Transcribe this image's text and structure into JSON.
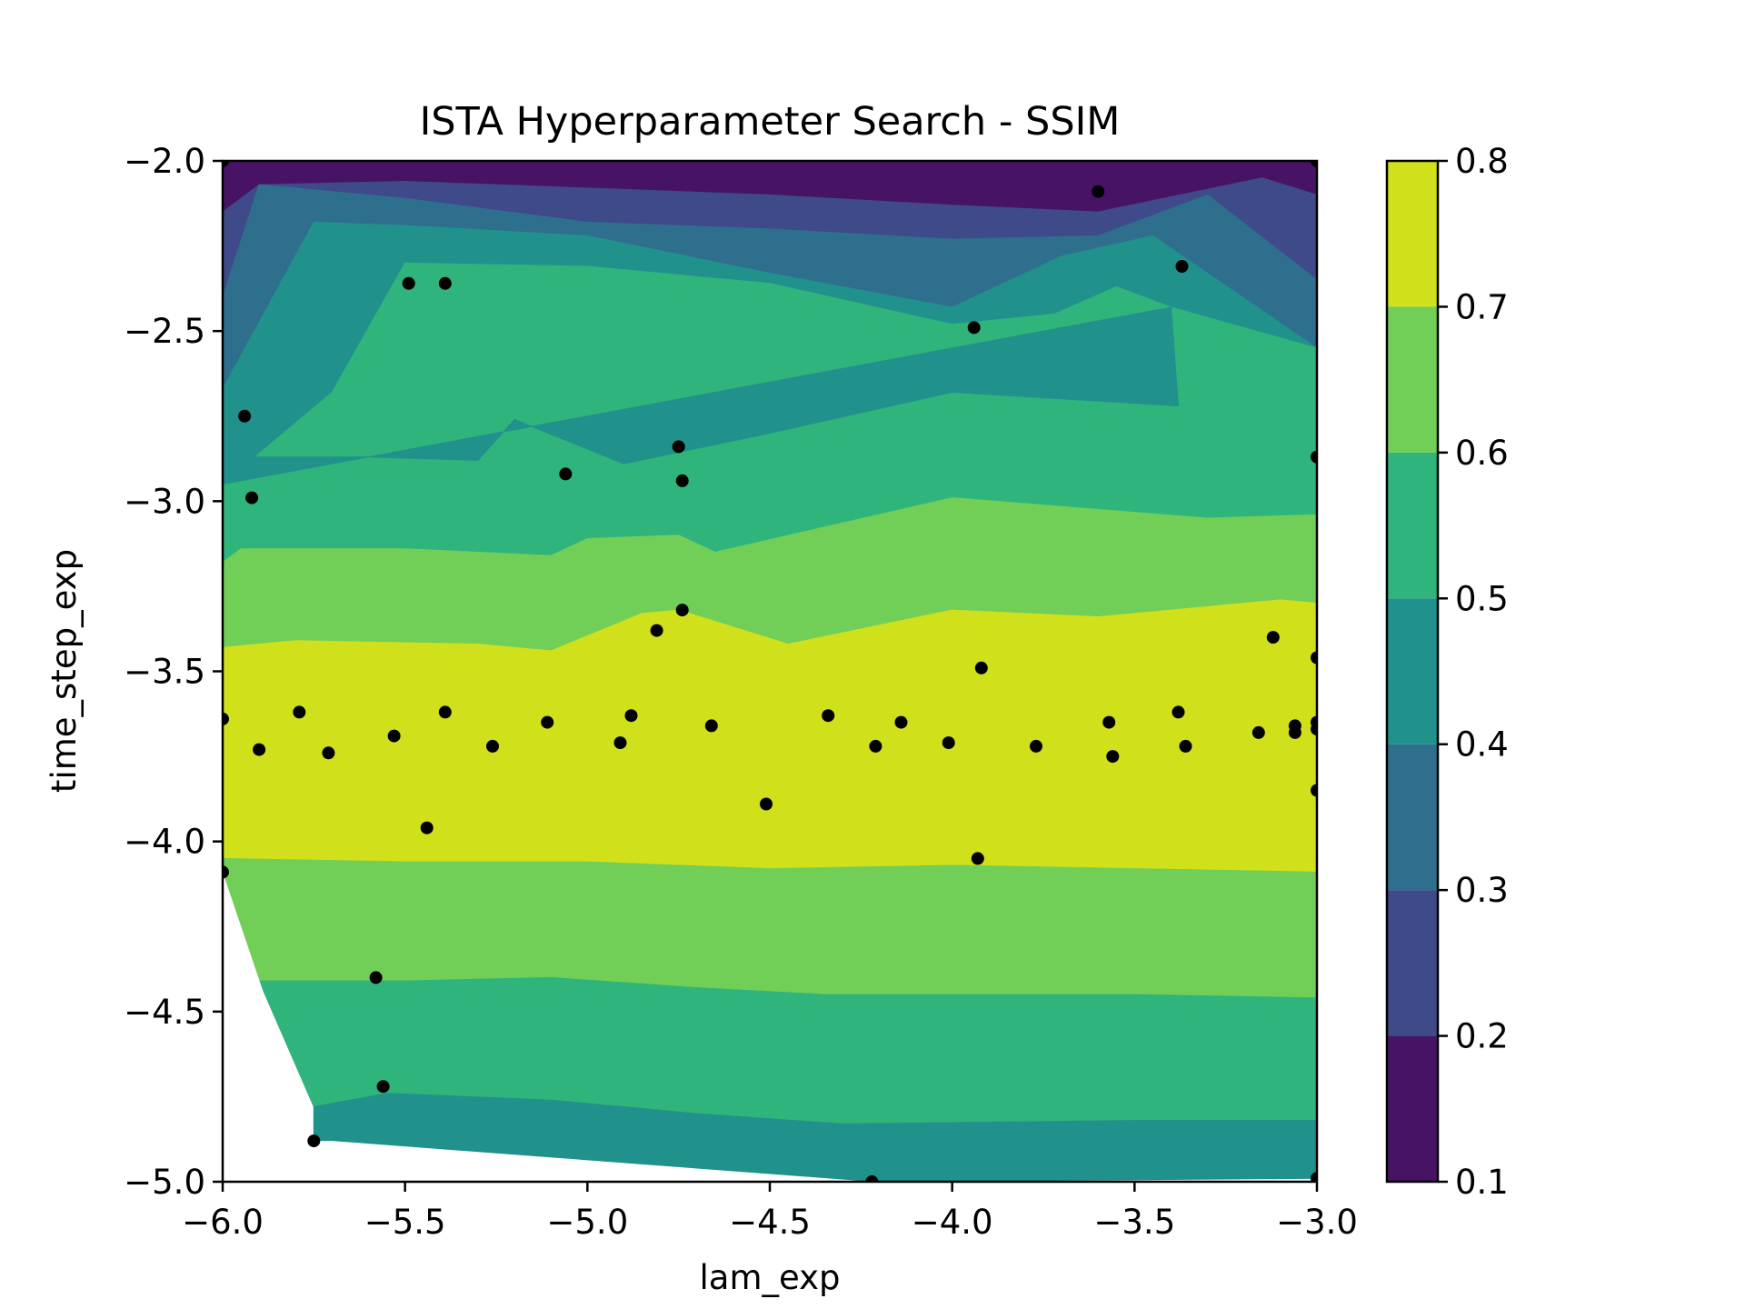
{
  "chart_data": {
    "type": "contour",
    "title": "ISTA Hyperparameter Search - SSIM",
    "xlabel": "lam_exp",
    "ylabel": "time_step_exp",
    "xlim": [
      -6.0,
      -3.0
    ],
    "ylim": [
      -5.0,
      -2.0
    ],
    "x_ticks": [
      -6.0,
      -5.5,
      -5.0,
      -4.5,
      -4.0,
      -3.5,
      -3.0
    ],
    "y_ticks": [
      -5.0,
      -4.5,
      -4.0,
      -3.5,
      -3.0,
      -2.5,
      -2.0
    ],
    "x_tick_labels": [
      "−6.0",
      "−5.5",
      "−5.0",
      "−4.5",
      "−4.0",
      "−3.5",
      "−3.0"
    ],
    "y_tick_labels": [
      "−5.0",
      "−4.5",
      "−4.0",
      "−3.5",
      "−3.0",
      "−2.5",
      "−2.0"
    ],
    "grid": false,
    "colorbar": {
      "levels": [
        0.1,
        0.2,
        0.3,
        0.4,
        0.5,
        0.6,
        0.7,
        0.8
      ],
      "tick_labels": [
        "0.1",
        "0.2",
        "0.3",
        "0.4",
        "0.5",
        "0.6",
        "0.7",
        "0.8"
      ],
      "colors": [
        "#471365",
        "#3e4a89",
        "#2e6f8e",
        "#21918c",
        "#2fb47c",
        "#71cf57",
        "#d0e11c"
      ]
    },
    "band_colors": {
      "0.1-0.2": "#471365",
      "0.2-0.3": "#3e4a89",
      "0.3-0.4": "#2e6f8e",
      "0.4-0.5": "#21918c",
      "0.5-0.6": "#2fb47c",
      "0.6-0.7": "#71cf57",
      "0.7-0.8": "#d0e11c"
    },
    "contour_lines": {
      "0.2": [
        [
          -6.0,
          -2.15
        ],
        [
          -5.9,
          -2.07
        ],
        [
          -5.5,
          -2.06
        ],
        [
          -5.0,
          -2.08
        ],
        [
          -4.5,
          -2.1
        ],
        [
          -4.0,
          -2.13
        ],
        [
          -3.6,
          -2.15
        ],
        [
          -3.15,
          -2.05
        ],
        [
          -3.0,
          -2.1
        ]
      ],
      "0.3": [
        [
          -6.0,
          -2.4
        ],
        [
          -5.9,
          -2.07
        ],
        [
          -5.5,
          -2.11
        ],
        [
          -5.0,
          -2.18
        ],
        [
          -4.5,
          -2.2
        ],
        [
          -4.0,
          -2.23
        ],
        [
          -3.6,
          -2.22
        ],
        [
          -3.3,
          -2.1
        ],
        [
          -3.0,
          -2.35
        ]
      ],
      "0.4": [
        [
          -6.0,
          -2.67
        ],
        [
          -5.75,
          -2.18
        ],
        [
          -5.5,
          -2.19
        ],
        [
          -5.0,
          -2.22
        ],
        [
          -4.5,
          -2.33
        ],
        [
          -4.0,
          -2.43
        ],
        [
          -3.7,
          -2.28
        ],
        [
          -3.45,
          -2.22
        ],
        [
          -3.0,
          -2.55
        ]
      ],
      "0.5": [
        [
          -6.0,
          -2.95
        ],
        [
          -5.7,
          -2.68
        ],
        [
          -5.5,
          -2.3
        ],
        [
          -5.0,
          -2.31
        ],
        [
          -4.5,
          -2.36
        ],
        [
          -4.0,
          -2.48
        ],
        [
          -3.72,
          -2.45
        ],
        [
          -3.55,
          -2.37
        ],
        [
          -3.4,
          -2.43
        ],
        [
          -3.38,
          -2.72
        ],
        [
          -4.0,
          -2.68
        ],
        [
          -4.5,
          -2.8
        ],
        [
          -4.9,
          -2.89
        ],
        [
          -5.2,
          -2.76
        ],
        [
          -5.3,
          -2.88
        ],
        [
          -5.6,
          -2.87
        ],
        [
          -5.95,
          -2.87
        ],
        [
          -6.0,
          -2.95
        ]
      ],
      "0.6": [
        [
          -6.0,
          -3.18
        ],
        [
          -5.95,
          -3.14
        ],
        [
          -5.5,
          -3.14
        ],
        [
          -5.1,
          -3.16
        ],
        [
          -5.0,
          -3.11
        ],
        [
          -4.75,
          -3.1
        ],
        [
          -4.65,
          -3.15
        ],
        [
          -4.0,
          -2.99
        ],
        [
          -3.3,
          -3.05
        ],
        [
          -3.0,
          -3.04
        ]
      ],
      "0.7": [
        [
          -6.0,
          -3.43
        ],
        [
          -5.8,
          -3.41
        ],
        [
          -5.3,
          -3.42
        ],
        [
          -5.1,
          -3.44
        ],
        [
          -4.85,
          -3.33
        ],
        [
          -4.75,
          -3.32
        ],
        [
          -4.45,
          -3.42
        ],
        [
          -4.0,
          -3.32
        ],
        [
          -3.6,
          -3.34
        ],
        [
          -3.1,
          -3.29
        ],
        [
          -3.0,
          -3.3
        ]
      ],
      "0.6b": [
        [
          -6.0,
          -4.05
        ],
        [
          -5.5,
          -4.06
        ],
        [
          -5.0,
          -4.06
        ],
        [
          -4.5,
          -4.08
        ],
        [
          -4.0,
          -4.07
        ],
        [
          -3.5,
          -4.08
        ],
        [
          -3.0,
          -4.09
        ]
      ],
      "0.5b": [
        [
          -5.9,
          -4.41
        ],
        [
          -5.5,
          -4.41
        ],
        [
          -5.1,
          -4.4
        ],
        [
          -4.7,
          -4.43
        ],
        [
          -4.35,
          -4.45
        ],
        [
          -4.0,
          -4.45
        ],
        [
          -3.5,
          -4.45
        ],
        [
          -3.0,
          -4.46
        ]
      ],
      "0.4b": [
        [
          -5.75,
          -4.78
        ],
        [
          -5.55,
          -4.74
        ],
        [
          -5.1,
          -4.76
        ],
        [
          -4.7,
          -4.8
        ],
        [
          -4.3,
          -4.83
        ],
        [
          -3.5,
          -4.82
        ],
        [
          -3.0,
          -4.82
        ]
      ]
    },
    "sample_points": [
      {
        "x": -6.0,
        "y": -2.0
      },
      {
        "x": -3.6,
        "y": -2.09
      },
      {
        "x": -3.0,
        "y": -2.0
      },
      {
        "x": -5.49,
        "y": -2.36
      },
      {
        "x": -5.39,
        "y": -2.36
      },
      {
        "x": -3.37,
        "y": -2.31
      },
      {
        "x": -3.94,
        "y": -2.49
      },
      {
        "x": -5.94,
        "y": -2.75
      },
      {
        "x": -5.92,
        "y": -2.99
      },
      {
        "x": -5.06,
        "y": -2.92
      },
      {
        "x": -4.75,
        "y": -2.84
      },
      {
        "x": -4.74,
        "y": -2.94
      },
      {
        "x": -3.0,
        "y": -2.87
      },
      {
        "x": -4.74,
        "y": -3.32
      },
      {
        "x": -4.81,
        "y": -3.38
      },
      {
        "x": -3.12,
        "y": -3.4
      },
      {
        "x": -3.0,
        "y": -3.46
      },
      {
        "x": -3.92,
        "y": -3.49
      },
      {
        "x": -6.0,
        "y": -3.64
      },
      {
        "x": -5.9,
        "y": -3.73
      },
      {
        "x": -5.79,
        "y": -3.62
      },
      {
        "x": -5.71,
        "y": -3.74
      },
      {
        "x": -5.53,
        "y": -3.69
      },
      {
        "x": -5.39,
        "y": -3.62
      },
      {
        "x": -5.26,
        "y": -3.72
      },
      {
        "x": -5.11,
        "y": -3.65
      },
      {
        "x": -4.91,
        "y": -3.71
      },
      {
        "x": -4.88,
        "y": -3.63
      },
      {
        "x": -4.66,
        "y": -3.66
      },
      {
        "x": -4.34,
        "y": -3.63
      },
      {
        "x": -4.21,
        "y": -3.72
      },
      {
        "x": -4.14,
        "y": -3.65
      },
      {
        "x": -4.01,
        "y": -3.71
      },
      {
        "x": -3.77,
        "y": -3.72
      },
      {
        "x": -3.57,
        "y": -3.65
      },
      {
        "x": -3.56,
        "y": -3.75
      },
      {
        "x": -3.38,
        "y": -3.62
      },
      {
        "x": -3.36,
        "y": -3.72
      },
      {
        "x": -3.16,
        "y": -3.68
      },
      {
        "x": -3.06,
        "y": -3.66
      },
      {
        "x": -3.06,
        "y": -3.68
      },
      {
        "x": -3.0,
        "y": -3.65
      },
      {
        "x": -3.0,
        "y": -3.67
      },
      {
        "x": -3.0,
        "y": -3.85
      },
      {
        "x": -4.51,
        "y": -3.89
      },
      {
        "x": -5.44,
        "y": -3.96
      },
      {
        "x": -3.93,
        "y": -4.05
      },
      {
        "x": -6.0,
        "y": -4.09
      },
      {
        "x": -5.58,
        "y": -4.4
      },
      {
        "x": -5.56,
        "y": -4.72
      },
      {
        "x": -5.75,
        "y": -4.88
      },
      {
        "x": -4.22,
        "y": -5.0
      },
      {
        "x": -3.0,
        "y": -4.99
      }
    ]
  }
}
